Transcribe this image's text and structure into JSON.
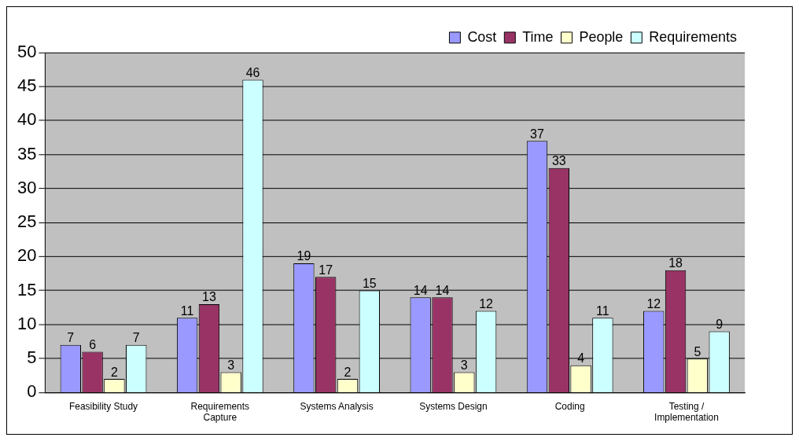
{
  "chart_data": {
    "type": "bar",
    "categories": [
      "Feasibility Study",
      "Requirements Capture",
      "Systems Analysis",
      "Systems Design",
      "Coding",
      "Testing / Implementation"
    ],
    "series": [
      {
        "name": "Cost",
        "color": "#9999ff",
        "values": [
          7,
          11,
          19,
          14,
          37,
          12
        ]
      },
      {
        "name": "Time",
        "color": "#993366",
        "values": [
          6,
          13,
          17,
          14,
          33,
          18
        ]
      },
      {
        "name": "People",
        "color": "#ffffcc",
        "values": [
          2,
          3,
          2,
          3,
          4,
          5
        ]
      },
      {
        "name": "Requirements",
        "color": "#ccffff",
        "values": [
          7,
          46,
          15,
          12,
          11,
          9
        ]
      }
    ],
    "ylim": [
      0,
      50
    ],
    "yticks": [
      0,
      5,
      10,
      15,
      20,
      25,
      30,
      35,
      40,
      45,
      50
    ],
    "grid": "y",
    "legend": "top right",
    "data_labels": true
  }
}
